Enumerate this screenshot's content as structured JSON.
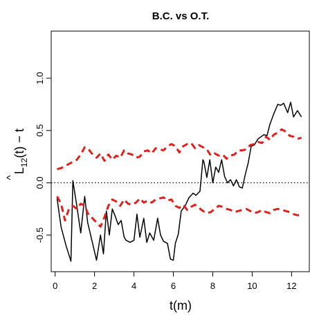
{
  "chart_data": {
    "type": "line",
    "title": "B.C. vs O.T.",
    "xlabel": "t(m)",
    "ylabel": {
      "hat": "^",
      "base": "L",
      "sub": "12",
      "rest": "(t) − t"
    },
    "xlim": [
      -0.2,
      12.9
    ],
    "ylim": [
      -0.85,
      1.45
    ],
    "x_ticks": [
      {
        "value": 0,
        "label": "0"
      },
      {
        "value": 2,
        "label": "2"
      },
      {
        "value": 4,
        "label": "4"
      },
      {
        "value": 6,
        "label": "6"
      },
      {
        "value": 8,
        "label": "8"
      },
      {
        "value": 10,
        "label": "10"
      },
      {
        "value": 12,
        "label": "12"
      }
    ],
    "y_ticks": [
      {
        "value": -0.5,
        "label": "-0.5"
      },
      {
        "value": 0.0,
        "label": "0.0"
      },
      {
        "value": 0.5,
        "label": "0.5"
      },
      {
        "value": 1.0,
        "label": "1.0"
      }
    ],
    "reference_line": {
      "y": 0,
      "style": "dotted"
    },
    "grid": false,
    "colors": {
      "observed": "#000000",
      "envelope": "#e0201b",
      "reference": "#000000"
    },
    "series": [
      {
        "role": "observed",
        "style": "solid",
        "x": [
          0.1,
          0.3,
          0.55,
          0.8,
          0.9,
          1.1,
          1.3,
          1.5,
          1.65,
          1.9,
          2.1,
          2.3,
          2.45,
          2.6,
          2.75,
          2.9,
          3.05,
          3.2,
          3.35,
          3.5,
          3.6,
          3.8,
          4.0,
          4.15,
          4.3,
          4.5,
          4.65,
          4.8,
          5.0,
          5.2,
          5.35,
          5.5,
          5.7,
          5.85,
          6.0,
          6.1,
          6.25,
          6.4,
          6.6,
          6.8,
          7.0,
          7.15,
          7.35,
          7.5,
          7.55,
          7.7,
          7.85,
          8.0,
          8.15,
          8.3,
          8.45,
          8.6,
          8.75,
          8.9,
          9.05,
          9.2,
          9.35,
          9.5,
          9.65,
          9.8,
          9.95,
          10.1,
          10.3,
          10.45,
          10.6,
          10.75,
          10.9,
          11.1,
          11.3,
          11.45,
          11.6,
          11.8,
          11.95,
          12.1,
          12.3,
          12.5
        ],
        "y": [
          -0.15,
          -0.42,
          -0.6,
          -0.75,
          0.02,
          -0.22,
          -0.48,
          -0.13,
          -0.38,
          -0.58,
          -0.74,
          -0.5,
          -0.68,
          -0.27,
          -0.5,
          -0.25,
          -0.32,
          -0.4,
          -0.36,
          -0.52,
          -0.55,
          -0.57,
          -0.55,
          -0.3,
          -0.52,
          -0.34,
          -0.57,
          -0.48,
          -0.55,
          -0.34,
          -0.5,
          -0.56,
          -0.58,
          -0.73,
          -0.74,
          -0.58,
          -0.49,
          -0.27,
          -0.22,
          -0.14,
          -0.1,
          -0.12,
          -0.08,
          0.22,
          0.2,
          0.05,
          0.22,
          0.0,
          0.15,
          0.1,
          0.22,
          0.06,
          0.0,
          0.03,
          -0.03,
          0.03,
          -0.04,
          -0.05,
          0.08,
          0.19,
          0.35,
          0.36,
          0.42,
          0.44,
          0.46,
          0.45,
          0.56,
          0.66,
          0.75,
          0.74,
          0.76,
          0.67,
          0.77,
          0.63,
          0.69,
          0.63
        ]
      },
      {
        "role": "upper-envelope",
        "style": "dashed",
        "x": [
          0.1,
          0.3,
          0.5,
          0.7,
          0.9,
          1.1,
          1.3,
          1.5,
          1.7,
          1.9,
          2.1,
          2.3,
          2.5,
          2.7,
          2.9,
          3.1,
          3.3,
          3.5,
          3.7,
          3.9,
          4.1,
          4.3,
          4.5,
          4.7,
          4.9,
          5.1,
          5.3,
          5.5,
          5.7,
          5.9,
          6.1,
          6.3,
          6.5,
          6.7,
          6.9,
          7.1,
          7.3,
          7.5,
          7.7,
          7.9,
          8.1,
          8.3,
          8.5,
          8.7,
          8.9,
          9.1,
          9.3,
          9.5,
          9.7,
          9.9,
          10.1,
          10.3,
          10.5,
          10.7,
          10.9,
          11.1,
          11.3,
          11.5,
          11.7,
          11.9,
          12.1,
          12.3,
          12.5
        ],
        "y": [
          0.13,
          0.14,
          0.16,
          0.18,
          0.2,
          0.22,
          0.27,
          0.34,
          0.32,
          0.27,
          0.24,
          0.28,
          0.21,
          0.27,
          0.22,
          0.26,
          0.24,
          0.31,
          0.28,
          0.27,
          0.24,
          0.25,
          0.3,
          0.31,
          0.28,
          0.33,
          0.32,
          0.31,
          0.35,
          0.37,
          0.35,
          0.29,
          0.35,
          0.37,
          0.38,
          0.33,
          0.36,
          0.34,
          0.32,
          0.26,
          0.28,
          0.26,
          0.27,
          0.23,
          0.26,
          0.27,
          0.31,
          0.31,
          0.32,
          0.36,
          0.37,
          0.39,
          0.38,
          0.44,
          0.41,
          0.46,
          0.48,
          0.51,
          0.49,
          0.45,
          0.44,
          0.42,
          0.43
        ]
      },
      {
        "role": "lower-envelope",
        "style": "dashed",
        "x": [
          0.1,
          0.3,
          0.5,
          0.7,
          0.9,
          1.1,
          1.3,
          1.5,
          1.7,
          1.9,
          2.1,
          2.3,
          2.5,
          2.7,
          2.9,
          3.1,
          3.3,
          3.5,
          3.7,
          3.9,
          4.1,
          4.3,
          4.5,
          4.7,
          4.9,
          5.1,
          5.3,
          5.5,
          5.7,
          5.9,
          6.1,
          6.3,
          6.5,
          6.7,
          6.9,
          7.1,
          7.3,
          7.5,
          7.7,
          7.9,
          8.1,
          8.3,
          8.5,
          8.7,
          8.9,
          9.1,
          9.3,
          9.5,
          9.7,
          9.9,
          10.1,
          10.3,
          10.5,
          10.7,
          10.9,
          11.1,
          11.3,
          11.5,
          11.7,
          11.9,
          12.1,
          12.3,
          12.5
        ],
        "y": [
          -0.13,
          -0.2,
          -0.36,
          -0.25,
          -0.22,
          -0.25,
          -0.2,
          -0.22,
          -0.31,
          -0.34,
          -0.38,
          -0.42,
          -0.33,
          -0.22,
          -0.16,
          -0.18,
          -0.22,
          -0.16,
          -0.2,
          -0.21,
          -0.19,
          -0.15,
          -0.19,
          -0.17,
          -0.19,
          -0.16,
          -0.15,
          -0.14,
          -0.17,
          -0.16,
          -0.22,
          -0.24,
          -0.21,
          -0.26,
          -0.23,
          -0.21,
          -0.24,
          -0.27,
          -0.29,
          -0.28,
          -0.25,
          -0.22,
          -0.23,
          -0.25,
          -0.26,
          -0.28,
          -0.27,
          -0.26,
          -0.25,
          -0.27,
          -0.29,
          -0.28,
          -0.26,
          -0.28,
          -0.29,
          -0.26,
          -0.25,
          -0.26,
          -0.27,
          -0.28,
          -0.3,
          -0.31,
          -0.31
        ]
      }
    ]
  }
}
